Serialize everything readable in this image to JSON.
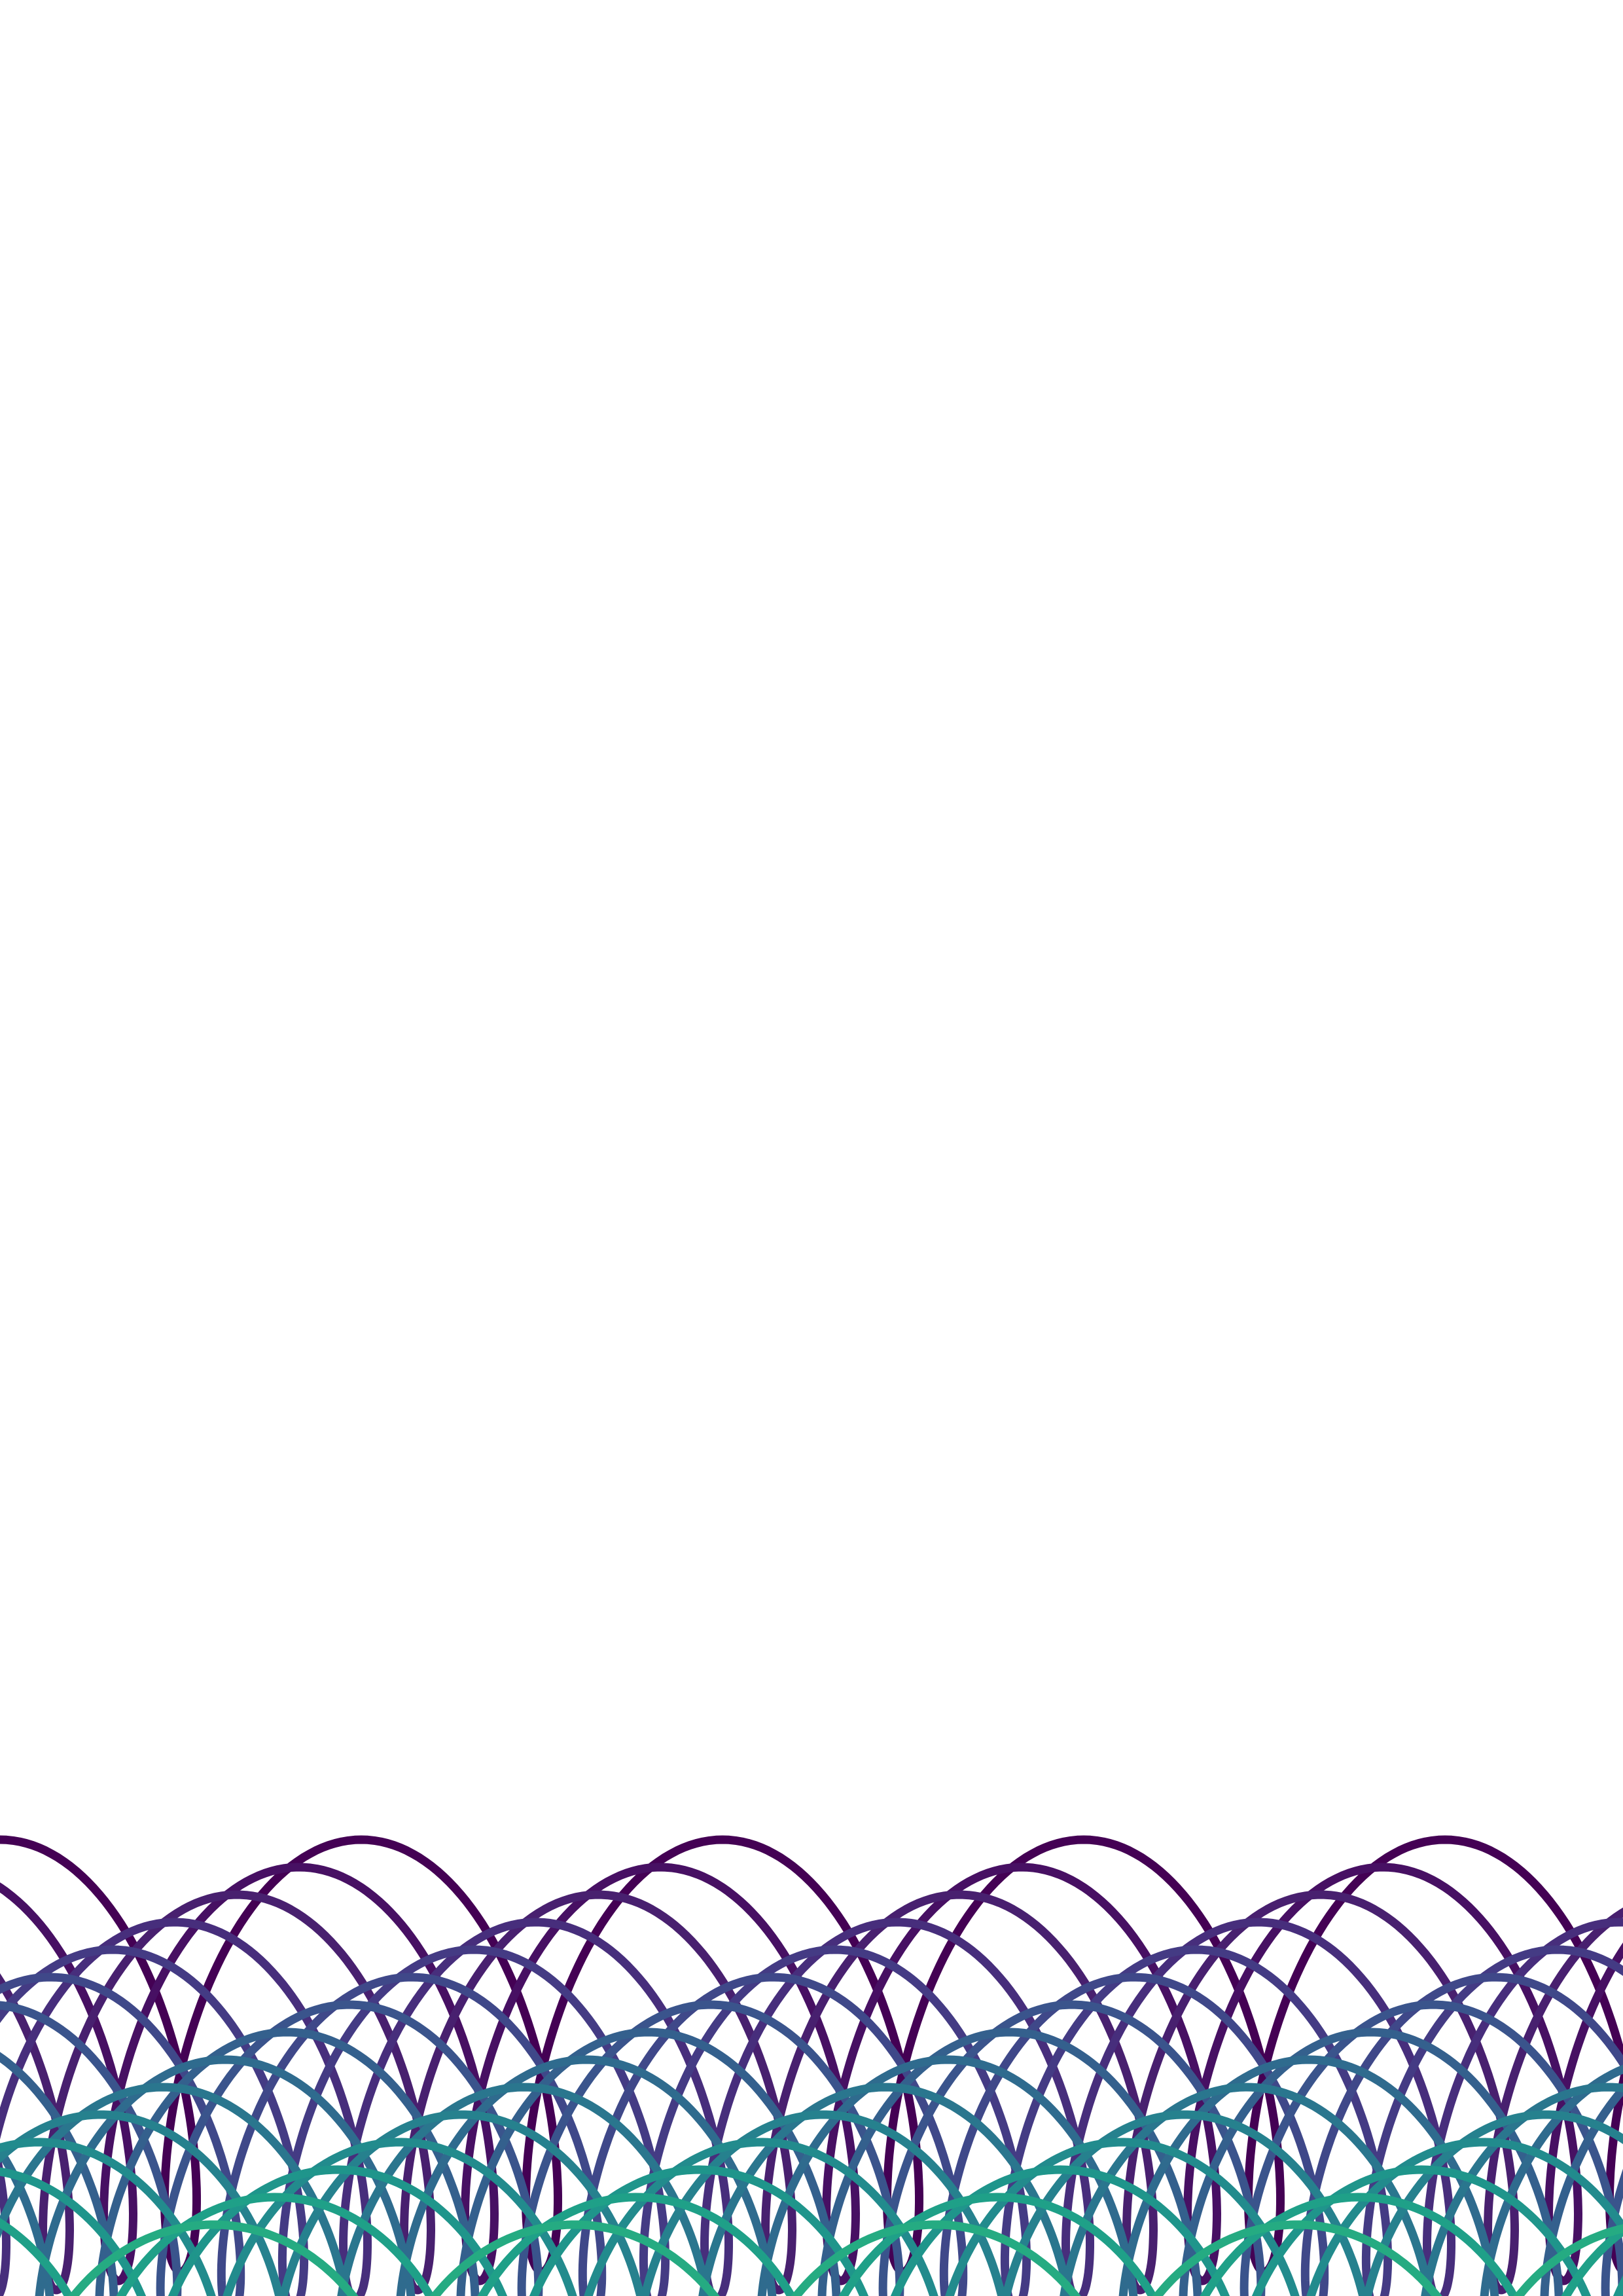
{
  "artwork": {
    "description_visible": "",
    "palette": [
      "#440154",
      "#471063",
      "#48206f",
      "#472e7c",
      "#443b84",
      "#3f4889",
      "#3a548c",
      "#34608d",
      "#2f6b8e",
      "#2a768e",
      "#26818e",
      "#228b8d",
      "#1f958b",
      "#1fa088",
      "#25ab82"
    ],
    "background": "#ffffff"
  }
}
